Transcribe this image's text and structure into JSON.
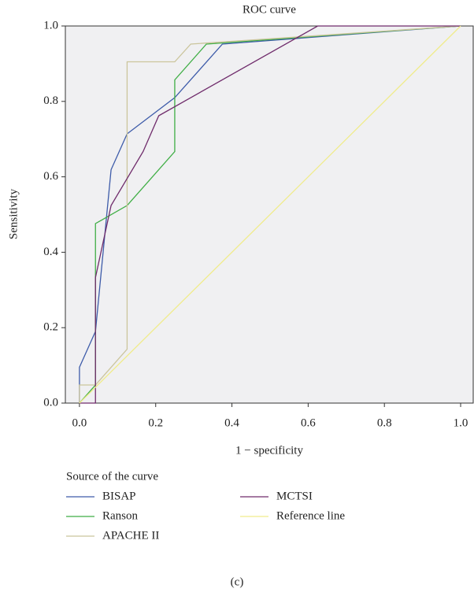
{
  "chart_data": {
    "type": "line",
    "title": "ROC curve",
    "xlabel": "1 − specificity",
    "ylabel": "Sensitivity",
    "legend_title": "Source of the curve",
    "caption": "(c)",
    "xlim": [
      -0.037,
      1.033
    ],
    "ylim": [
      0,
      1
    ],
    "xticks": [
      {
        "value": 0,
        "label": "0.0"
      },
      {
        "value": 0.2,
        "label": "0.2"
      },
      {
        "value": 0.4,
        "label": "0.4"
      },
      {
        "value": 0.6,
        "label": "0.6"
      },
      {
        "value": 0.8,
        "label": "0.8"
      },
      {
        "value": 1,
        "label": "1.0"
      }
    ],
    "yticks": [
      {
        "value": 0,
        "label": "0.0"
      },
      {
        "value": 0.2,
        "label": "0.2"
      },
      {
        "value": 0.4,
        "label": "0.4"
      },
      {
        "value": 0.6,
        "label": "0.6"
      },
      {
        "value": 0.8,
        "label": "0.8"
      },
      {
        "value": 1,
        "label": "1.0"
      }
    ],
    "series": [
      {
        "name": "BISAP",
        "color": "#3d5ba9",
        "x": [
          0,
          0,
          0.042,
          0.083,
          0.125,
          0.25,
          0.375,
          1
        ],
        "values": [
          0,
          0.095,
          0.19,
          0.619,
          0.714,
          0.81,
          0.952,
          1
        ]
      },
      {
        "name": "Ranson",
        "color": "#3fae45",
        "x": [
          0,
          0.042,
          0.042,
          0.125,
          0.25,
          0.25,
          0.333,
          1
        ],
        "values": [
          0,
          0.048,
          0.476,
          0.524,
          0.667,
          0.857,
          0.952,
          1
        ]
      },
      {
        "name": "APACHE II",
        "color": "#cbc59c",
        "x": [
          0,
          0,
          0.042,
          0.125,
          0.125,
          0.25,
          0.292,
          1
        ],
        "values": [
          0,
          0.048,
          0.048,
          0.143,
          0.905,
          0.905,
          0.952,
          1
        ]
      },
      {
        "name": "MCTSI",
        "color": "#6f2b6b",
        "x": [
          0,
          0.042,
          0.042,
          0.083,
          0.167,
          0.208,
          0.625,
          1
        ],
        "values": [
          0,
          0,
          0.333,
          0.524,
          0.667,
          0.762,
          1,
          1
        ]
      },
      {
        "name": "Reference line",
        "color": "#f0ec8c",
        "x": [
          0,
          1
        ],
        "values": [
          0,
          1
        ]
      }
    ]
  }
}
